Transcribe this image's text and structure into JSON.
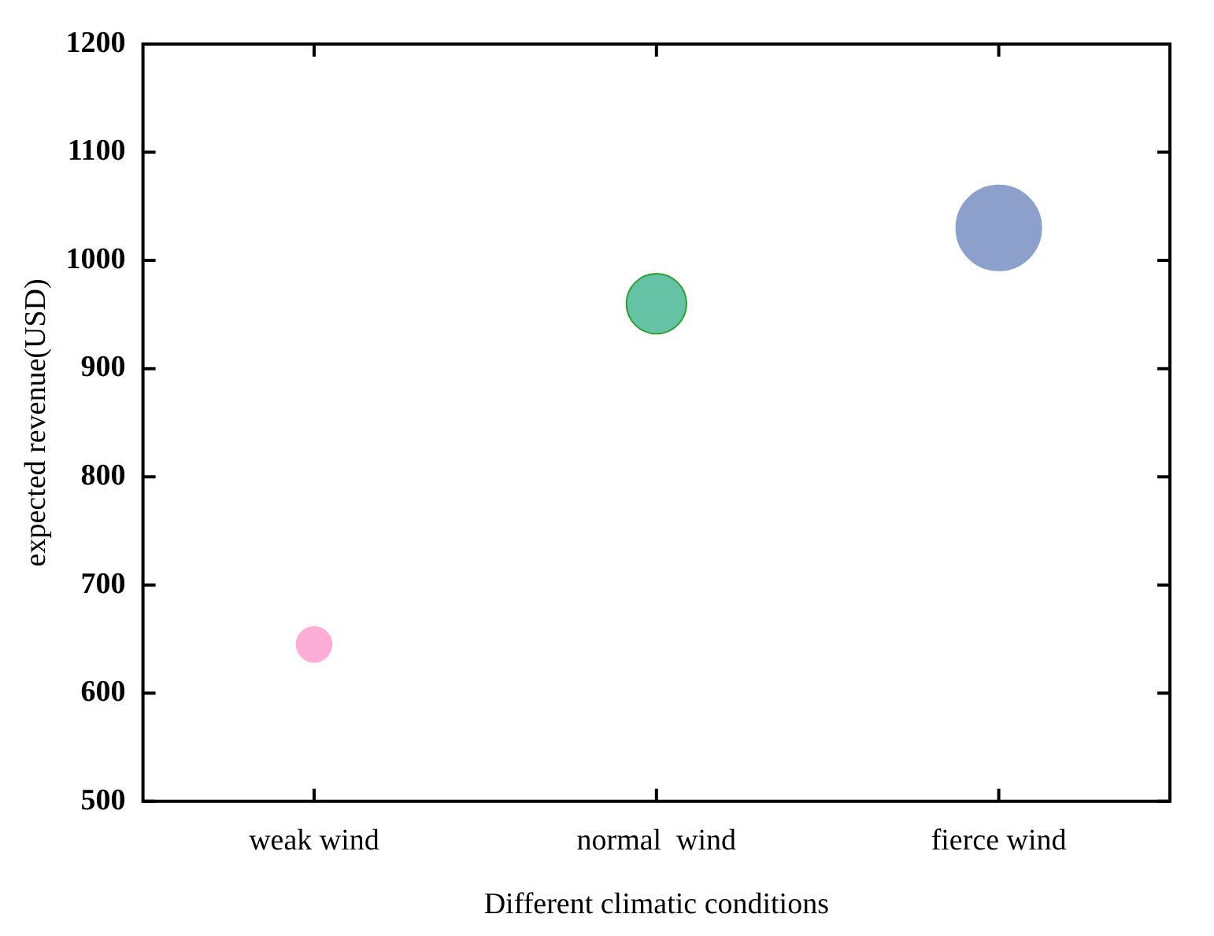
{
  "chart_data": {
    "type": "bubble",
    "xlabel": "Different climatic conditions",
    "ylabel": "expected revenue(USD)",
    "categories": [
      "weak wind",
      "normal  wind",
      "fierce wind"
    ],
    "values": [
      645,
      960,
      1030
    ],
    "sizes": [
      0.17,
      0.5,
      1
    ],
    "colors": [
      "#fdaed7",
      "#66c2a5",
      "#8da0cb"
    ],
    "ylim": [
      500,
      1200
    ],
    "yticks": [
      500,
      600,
      700,
      800,
      900,
      1000,
      1100,
      1200
    ],
    "grid": false,
    "legend": false
  }
}
